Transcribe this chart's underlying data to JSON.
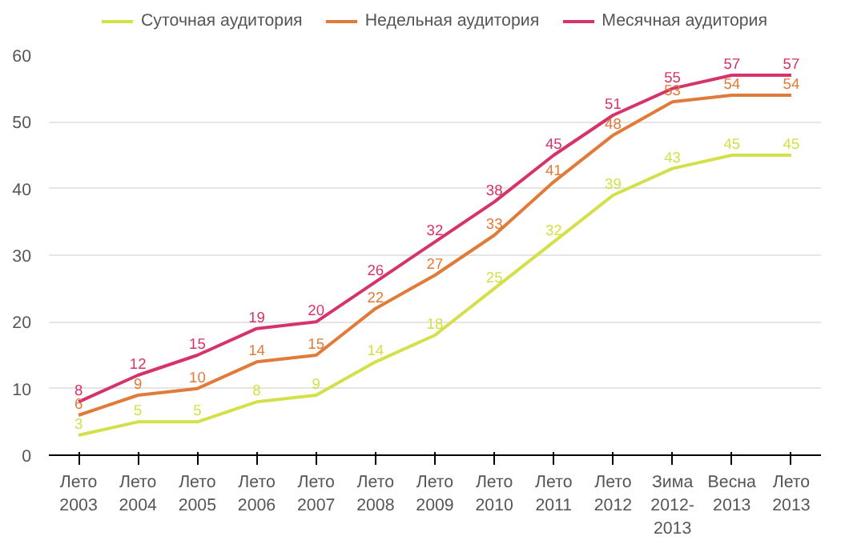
{
  "chart_data": {
    "type": "line",
    "categories": [
      "Лето\n2003",
      "Лето\n2004",
      "Лето\n2005",
      "Лето\n2006",
      "Лето\n2007",
      "Лето\n2008",
      "Лето\n2009",
      "Лето\n2010",
      "Лето\n2011",
      "Лето\n2012",
      "Зима\n2012-\n2013",
      "Весна\n2013",
      "Лето\n2013"
    ],
    "series": [
      {
        "name": "Суточная аудитория",
        "color": "#d4e04a",
        "values": [
          3,
          5,
          5,
          8,
          9,
          14,
          18,
          25,
          32,
          39,
          43,
          45,
          45
        ]
      },
      {
        "name": "Недельная аудитория",
        "color": "#e07b39",
        "values": [
          6,
          9,
          10,
          14,
          15,
          22,
          27,
          33,
          41,
          48,
          53,
          54,
          54
        ]
      },
      {
        "name": "Месячная аудитория",
        "color": "#d6336c",
        "values": [
          8,
          12,
          15,
          19,
          20,
          26,
          32,
          38,
          45,
          51,
          55,
          57,
          57
        ]
      }
    ],
    "ylim": [
      0,
      60
    ],
    "yticks": [
      0,
      10,
      20,
      30,
      40,
      50,
      60
    ],
    "grid": "y",
    "legend": "top",
    "data_labels": true,
    "marker": "none",
    "line_style": "solid"
  }
}
